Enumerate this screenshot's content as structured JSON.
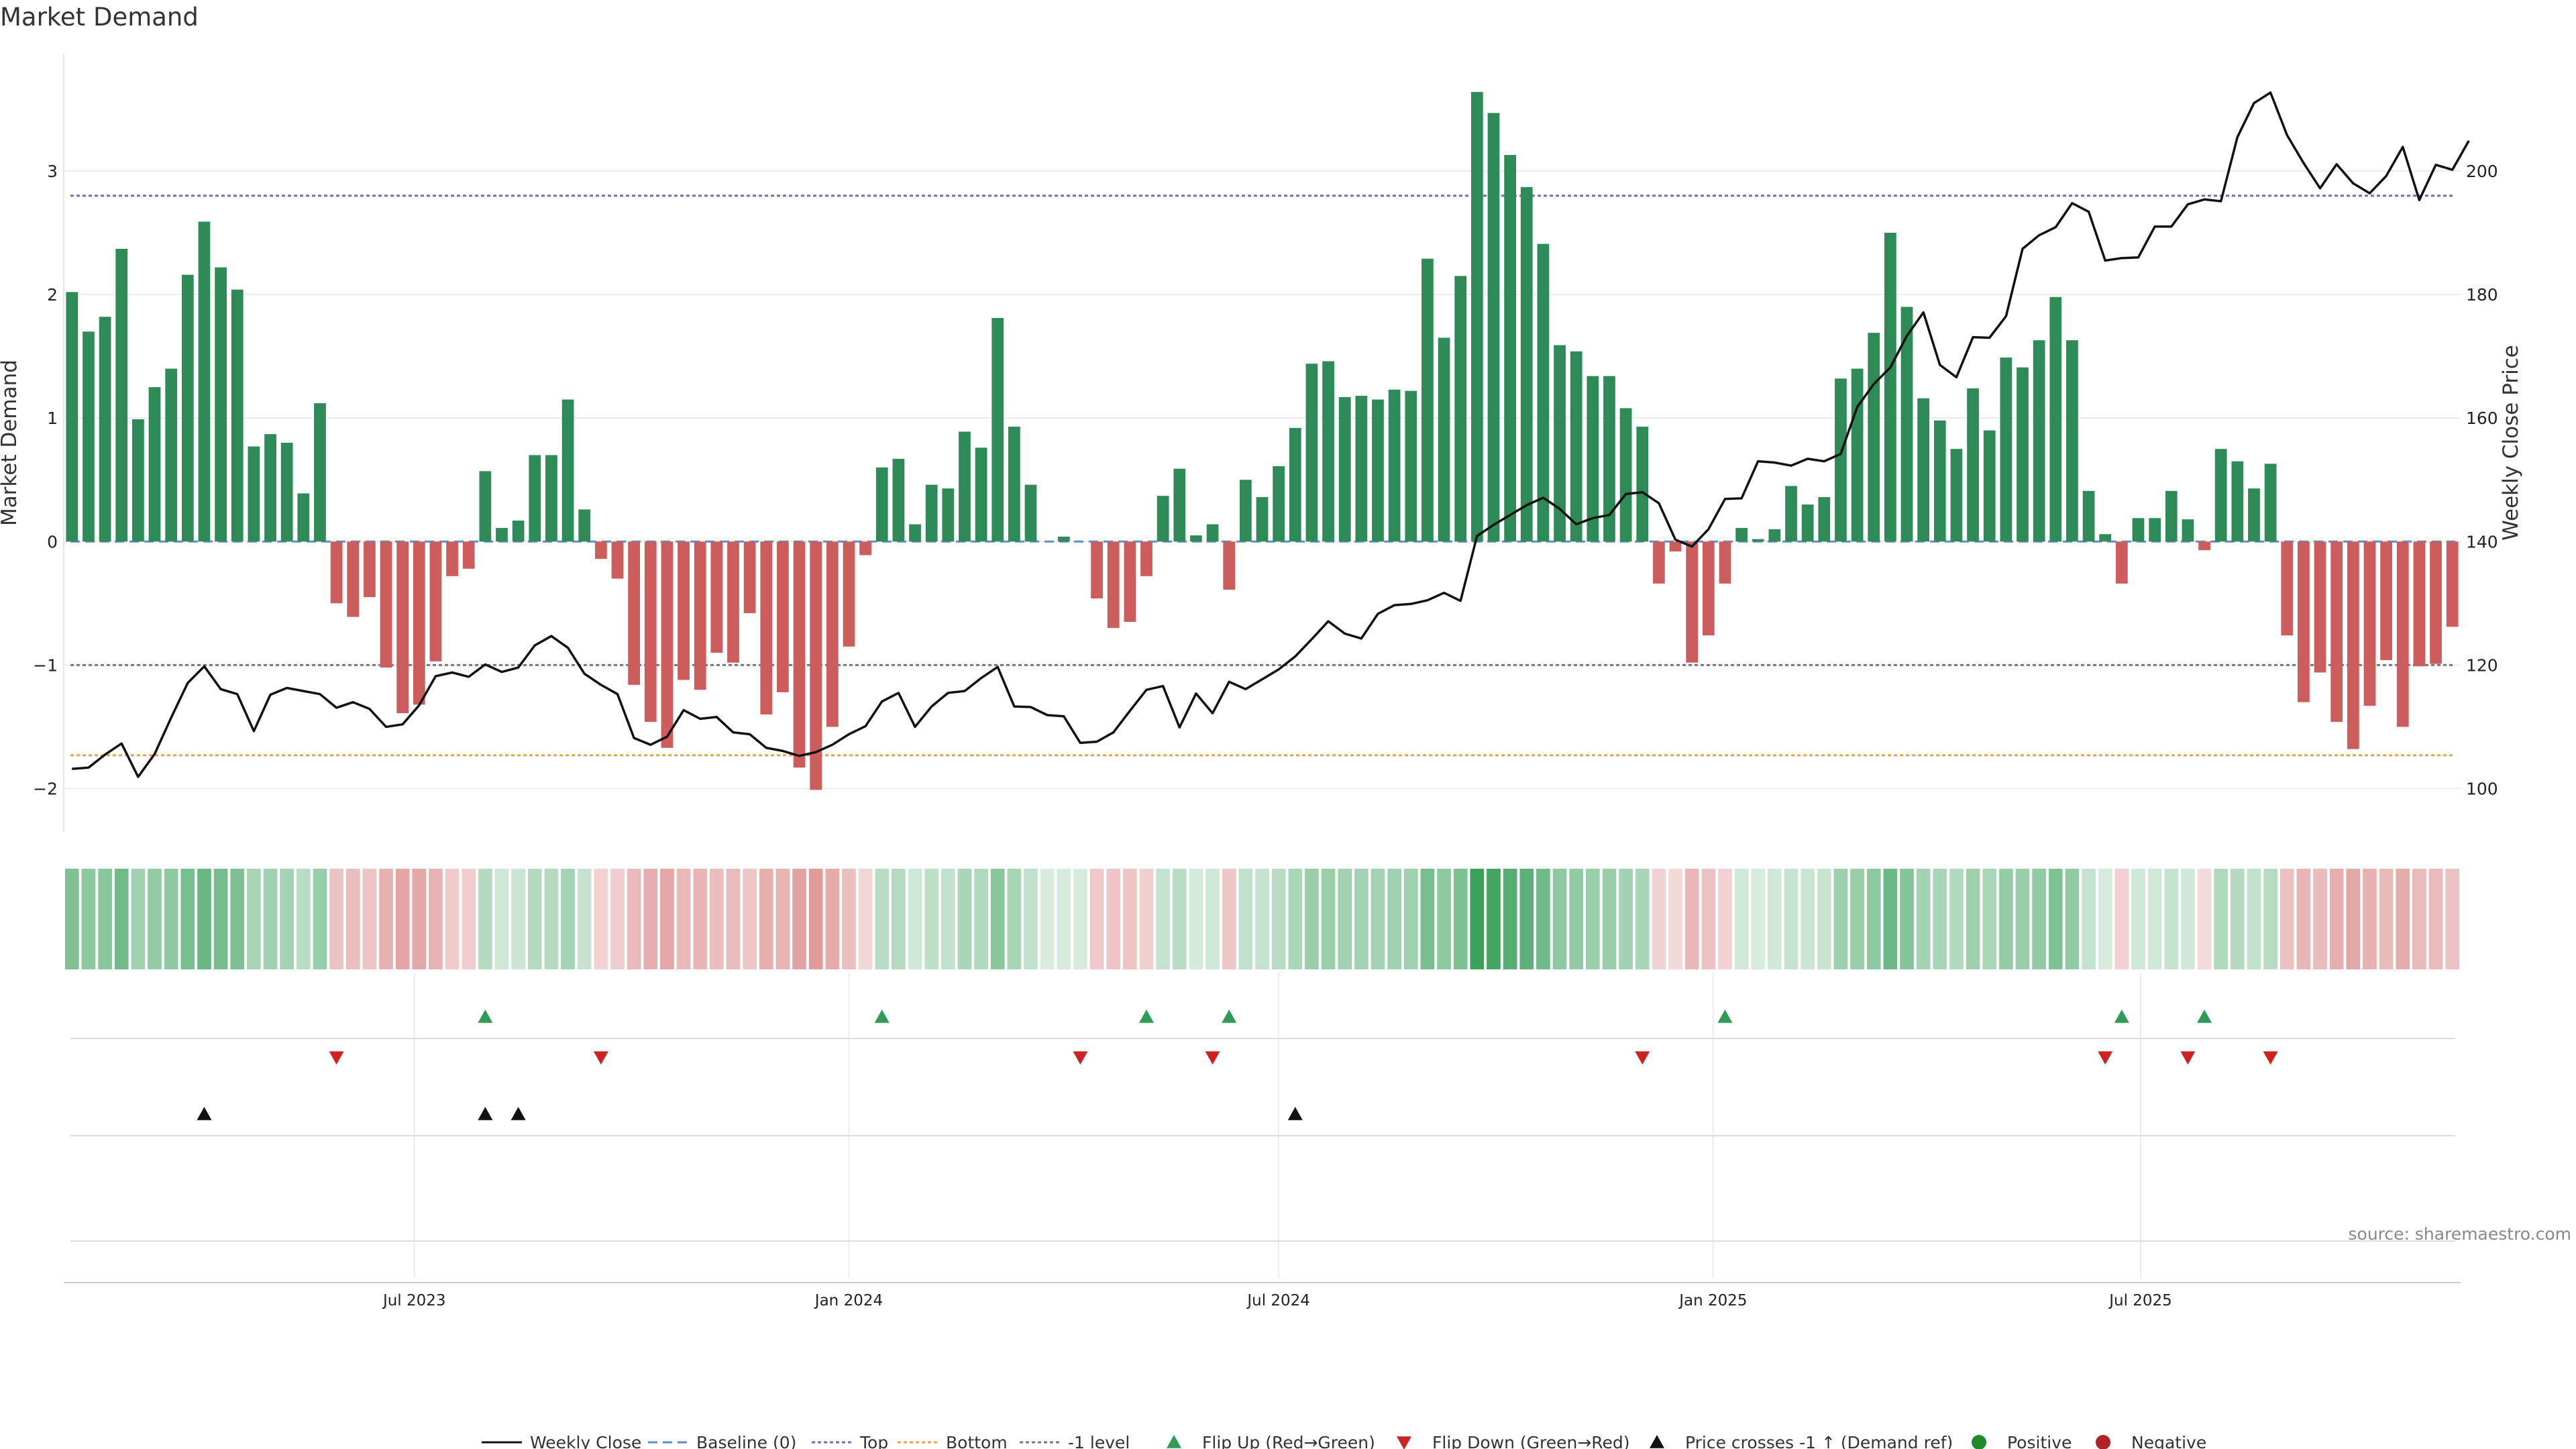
{
  "chart_data": {
    "type": "bar",
    "title": "Market Demand",
    "ylabel_left": "Market Demand",
    "ylabel_right": "Weekly Close Price",
    "source": "source: sharemaestro.com",
    "ylim_left": [
      -2.35,
      3.95
    ],
    "ylim_right": [
      93,
      219
    ],
    "yticks_left": [
      "3",
      "2",
      "1",
      "0",
      "−1",
      "−2"
    ],
    "yticks_left_values": [
      3,
      2,
      1,
      0,
      -1,
      -2
    ],
    "yticks_right": [
      "200",
      "180",
      "160",
      "140",
      "120",
      "100"
    ],
    "yticks_right_values": [
      200,
      180,
      160,
      140,
      120,
      100
    ],
    "x_start": "2023-02-06",
    "x_step_days": 7,
    "xticks": [
      {
        "label": "Jul 2023",
        "date": "2023-07-01"
      },
      {
        "label": "Jan 2024",
        "date": "2024-01-01"
      },
      {
        "label": "Jul 2024",
        "date": "2024-07-01"
      },
      {
        "label": "Jan 2025",
        "date": "2025-01-01"
      },
      {
        "label": "Jul 2025",
        "date": "2025-07-01"
      }
    ],
    "reference_lines": {
      "top": 2.8,
      "bottom": -1.73,
      "minus_one": -1,
      "baseline": 0
    },
    "colors": {
      "positive": "#2e8b57",
      "negative": "#cd5c5c",
      "price": "#111111",
      "top": "#7b68b5",
      "bottom": "#e8a33d",
      "minus_one": "#777777",
      "flip_up": "#2e9b57",
      "flip_down": "#cc2222",
      "cross": "#111111"
    },
    "demand": [
      2.02,
      1.7,
      1.82,
      2.37,
      0.99,
      1.25,
      1.4,
      2.16,
      2.59,
      2.22,
      2.04,
      0.77,
      0.87,
      0.8,
      0.39,
      1.12,
      -0.5,
      -0.61,
      -0.45,
      -1.02,
      -1.39,
      -1.32,
      -0.97,
      -0.28,
      -0.22,
      0.57,
      0.11,
      0.17,
      0.7,
      0.7,
      1.15,
      0.26,
      -0.14,
      -0.3,
      -1.16,
      -1.46,
      -1.67,
      -1.12,
      -1.2,
      -0.9,
      -0.98,
      -0.58,
      -1.4,
      -1.22,
      -1.83,
      -2.01,
      -1.5,
      -0.85,
      -0.11,
      0.6,
      0.67,
      0.14,
      0.46,
      0.43,
      0.89,
      0.76,
      1.81,
      0.93,
      0.46,
      0.0,
      0.04,
      0.0,
      -0.46,
      -0.7,
      -0.65,
      -0.28,
      0.37,
      0.59,
      0.05,
      0.14,
      -0.39,
      0.5,
      0.36,
      0.61,
      0.92,
      1.44,
      1.46,
      1.17,
      1.18,
      1.15,
      1.23,
      1.22,
      2.29,
      1.65,
      2.15,
      3.64,
      3.47,
      3.13,
      2.87,
      2.41,
      1.59,
      1.54,
      1.34,
      1.34,
      1.08,
      0.93,
      -0.34,
      -0.08,
      -0.98,
      -0.76,
      -0.34,
      0.11,
      0.02,
      0.1,
      0.45,
      0.3,
      0.36,
      1.32,
      1.4,
      1.69,
      2.5,
      1.9,
      1.16,
      0.98,
      0.75,
      1.24,
      0.9,
      1.49,
      1.41,
      1.63,
      1.98,
      1.63,
      0.41,
      0.06,
      -0.34,
      0.19,
      0.19,
      0.41,
      0.18,
      -0.07,
      0.75,
      0.65,
      0.43,
      0.63,
      -0.76,
      -1.3,
      -1.06,
      -1.46,
      -1.68,
      -1.33,
      -0.96,
      -1.5,
      -1.01,
      -0.99,
      -0.69
    ],
    "price": [
      103.2,
      103.4,
      105.5,
      107.3,
      101.9,
      105.6,
      111.5,
      117.1,
      119.8,
      116.1,
      115.3,
      109.3,
      115.2,
      116.3,
      115.8,
      115.3,
      113.1,
      114.0,
      112.9,
      110.0,
      110.4,
      113.5,
      118.2,
      118.8,
      118.1,
      120.1,
      118.9,
      119.6,
      123.2,
      124.7,
      122.8,
      118.6,
      116.8,
      115.3,
      108.2,
      107.1,
      108.4,
      112.7,
      111.3,
      111.6,
      109.1,
      108.8,
      106.6,
      106.1,
      105.3,
      105.9,
      107.1,
      108.8,
      110.1,
      114.1,
      115.5,
      110.0,
      113.3,
      115.5,
      115.8,
      117.9,
      119.7,
      113.3,
      113.2,
      111.9,
      111.7,
      107.4,
      107.6,
      109.1,
      112.6,
      116.0,
      116.6,
      109.9,
      115.4,
      112.2,
      117.3,
      116.1,
      117.7,
      119.3,
      121.4,
      124.2,
      127.1,
      125.1,
      124.3,
      128.3,
      129.7,
      129.9,
      130.5,
      131.7,
      130.4,
      140.9,
      142.7,
      144.3,
      145.9,
      147.1,
      145.3,
      142.8,
      143.8,
      144.3,
      147.7,
      148.0,
      146.2,
      140.3,
      139.2,
      142.0,
      146.9,
      147.0,
      153.0,
      152.8,
      152.3,
      153.4,
      153.0,
      154.2,
      161.8,
      165.5,
      168.2,
      173.3,
      177.1,
      168.6,
      166.6,
      173.1,
      173.0,
      176.5,
      187.4,
      189.6,
      190.9,
      194.8,
      193.4,
      185.5,
      185.9,
      186.0,
      191.0,
      191.0,
      194.6,
      195.4,
      195.1,
      205.5,
      211.0,
      212.7,
      205.8,
      201.3,
      197.2,
      201.1,
      198.0,
      196.4,
      199.2,
      203.9,
      195.3,
      201.0,
      200.2,
      204.9
    ],
    "demand_heat_intensity": [
      0.55,
      0.48,
      0.5,
      0.62,
      0.38,
      0.45,
      0.47,
      0.58,
      0.66,
      0.59,
      0.56,
      0.35,
      0.38,
      0.36,
      0.26,
      0.43,
      0.28,
      0.3,
      0.27,
      0.38,
      0.45,
      0.44,
      0.37,
      0.22,
      0.21,
      0.28,
      0.15,
      0.17,
      0.28,
      0.28,
      0.36,
      0.19,
      0.18,
      0.2,
      0.33,
      0.4,
      0.44,
      0.33,
      0.35,
      0.3,
      0.32,
      0.25,
      0.4,
      0.36,
      0.47,
      0.52,
      0.41,
      0.29,
      0.16,
      0.26,
      0.28,
      0.15,
      0.23,
      0.22,
      0.33,
      0.3,
      0.5,
      0.34,
      0.22,
      0.1,
      0.11,
      0.1,
      0.23,
      0.27,
      0.26,
      0.2,
      0.2,
      0.26,
      0.12,
      0.15,
      0.25,
      0.22,
      0.2,
      0.26,
      0.33,
      0.42,
      0.42,
      0.37,
      0.37,
      0.36,
      0.38,
      0.38,
      0.58,
      0.48,
      0.56,
      0.9,
      0.85,
      0.76,
      0.72,
      0.62,
      0.47,
      0.46,
      0.42,
      0.42,
      0.37,
      0.34,
      0.18,
      0.14,
      0.34,
      0.28,
      0.18,
      0.14,
      0.11,
      0.14,
      0.2,
      0.17,
      0.18,
      0.4,
      0.42,
      0.47,
      0.64,
      0.52,
      0.37,
      0.34,
      0.3,
      0.39,
      0.33,
      0.44,
      0.42,
      0.46,
      0.54,
      0.46,
      0.2,
      0.11,
      0.18,
      0.14,
      0.14,
      0.2,
      0.14,
      0.12,
      0.3,
      0.28,
      0.22,
      0.27,
      0.28,
      0.36,
      0.32,
      0.4,
      0.44,
      0.38,
      0.32,
      0.41,
      0.33,
      0.33,
      0.28
    ],
    "flip_up_indices": [
      25,
      49,
      65,
      70,
      100,
      124,
      129
    ],
    "flip_down_indices": [
      16,
      32,
      61,
      69,
      95,
      123,
      128,
      133
    ],
    "price_cross_indices": [
      8,
      25,
      27,
      74
    ],
    "legend": [
      "Weekly Close",
      "Baseline (0)",
      "Top",
      "Bottom",
      "-1 level",
      "Flip Up (Red→Green)",
      "Flip Down (Green→Red)",
      "Price crosses -1 ↑ (Demand ref)",
      "Positive",
      "Negative"
    ]
  }
}
